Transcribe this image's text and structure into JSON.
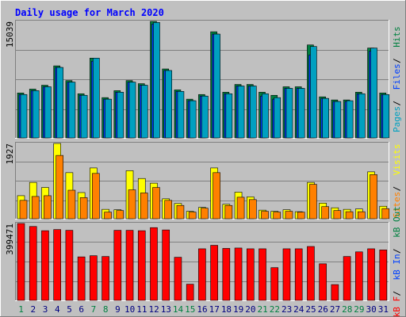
{
  "chart_data": {
    "type": "bar",
    "title": "Daily usage for March 2020",
    "categories": [
      "1",
      "2",
      "3",
      "4",
      "5",
      "6",
      "7",
      "8",
      "9",
      "10",
      "11",
      "12",
      "13",
      "14",
      "15",
      "16",
      "17",
      "18",
      "19",
      "20",
      "21",
      "22",
      "23",
      "24",
      "25",
      "26",
      "27",
      "28",
      "29",
      "30",
      "31"
    ],
    "weekend_days": [
      "1",
      "7",
      "8",
      "14",
      "15",
      "21",
      "22",
      "28",
      "29"
    ],
    "grid": true,
    "legend": "right side, vertical",
    "panels": [
      {
        "id": "hits-files-pages",
        "axis_max_label": "15039",
        "ylim": [
          0,
          15039
        ],
        "legend": [
          {
            "label": "Pages",
            "color": "#00a0c0"
          },
          {
            "label": "Files",
            "color": "#0040ff"
          },
          {
            "label": "Hits",
            "color": "#008040"
          }
        ],
        "series": [
          {
            "name": "Hits",
            "color": "#008040",
            "values": [
              5800,
              6300,
              6800,
              9300,
              7400,
              5700,
              10300,
              5200,
              6100,
              7400,
              7000,
              15039,
              8900,
              6200,
              5000,
              5600,
              13700,
              5900,
              6900,
              6900,
              5900,
              5500,
              6600,
              6600,
              12000,
              5300,
              4900,
              4900,
              5900,
              11600,
              5800
            ]
          },
          {
            "name": "Files",
            "color": "#0040ff",
            "values": [
              5600,
              6100,
              6600,
              9100,
              7200,
              5500,
              9900,
              5000,
              5900,
              7200,
              6800,
              14700,
              8700,
              6000,
              4800,
              5400,
              13400,
              5700,
              6700,
              6700,
              5400,
              5000,
              6400,
              6400,
              10700,
              5100,
              4700,
              4700,
              5700,
              11200,
              5600
            ]
          },
          {
            "name": "Pages",
            "color": "#00a0c0",
            "values": [
              5600,
              6100,
              6600,
              9100,
              7200,
              5500,
              10300,
              5000,
              5900,
              7200,
              6800,
              14900,
              8700,
              6000,
              4800,
              5400,
              13400,
              5700,
              6700,
              6700,
              5700,
              5200,
              6400,
              6400,
              11800,
              5100,
              4700,
              4800,
              5700,
              11600,
              5600
            ]
          }
        ]
      },
      {
        "id": "visits-sites",
        "axis_max_label": "1927",
        "ylim": [
          0,
          1927
        ],
        "legend": [
          {
            "label": "Sites",
            "color": "#ff8000"
          },
          {
            "label": "Visits",
            "color": "#ffff00"
          }
        ],
        "series": [
          {
            "name": "Visits",
            "color": "#ffff00",
            "values": [
              590,
              930,
              800,
              1927,
              1180,
              670,
              1300,
              240,
              230,
              1230,
              1030,
              910,
              510,
              390,
              190,
              290,
              1300,
              370,
              680,
              560,
              220,
              190,
              230,
              180,
              930,
              400,
              280,
              240,
              250,
              1200,
              320
            ]
          },
          {
            "name": "Sites",
            "color": "#ff8000",
            "values": [
              470,
              570,
              590,
              1620,
              730,
              540,
              1160,
              170,
              210,
              740,
              660,
              800,
              470,
              340,
              170,
              270,
              1180,
              340,
              550,
              490,
              190,
              170,
              190,
              170,
              880,
              310,
              210,
              180,
              180,
              1130,
              260
            ]
          }
        ]
      },
      {
        "id": "kb",
        "axis_max_label": "399471",
        "ylim": [
          0,
          399471
        ],
        "legend": [
          {
            "label": "kB F",
            "color": "#ff0000"
          },
          {
            "label": "kB In",
            "color": "#0040ff"
          },
          {
            "label": "kB Out",
            "color": "#008040"
          }
        ],
        "series": [
          {
            "name": "kB F",
            "color": "#ff0000",
            "values": [
              399471,
              384000,
              362000,
              368000,
              364000,
              226000,
              232000,
              228000,
              364000,
              364000,
              362000,
              378000,
              366000,
              224000,
              84000,
              268000,
              286000,
              270000,
              272000,
              268000,
              268000,
              170000,
              268000,
              268000,
              280000,
              190000,
              82000,
              228000,
              252000,
              268000,
              262000
            ]
          }
        ]
      }
    ]
  }
}
